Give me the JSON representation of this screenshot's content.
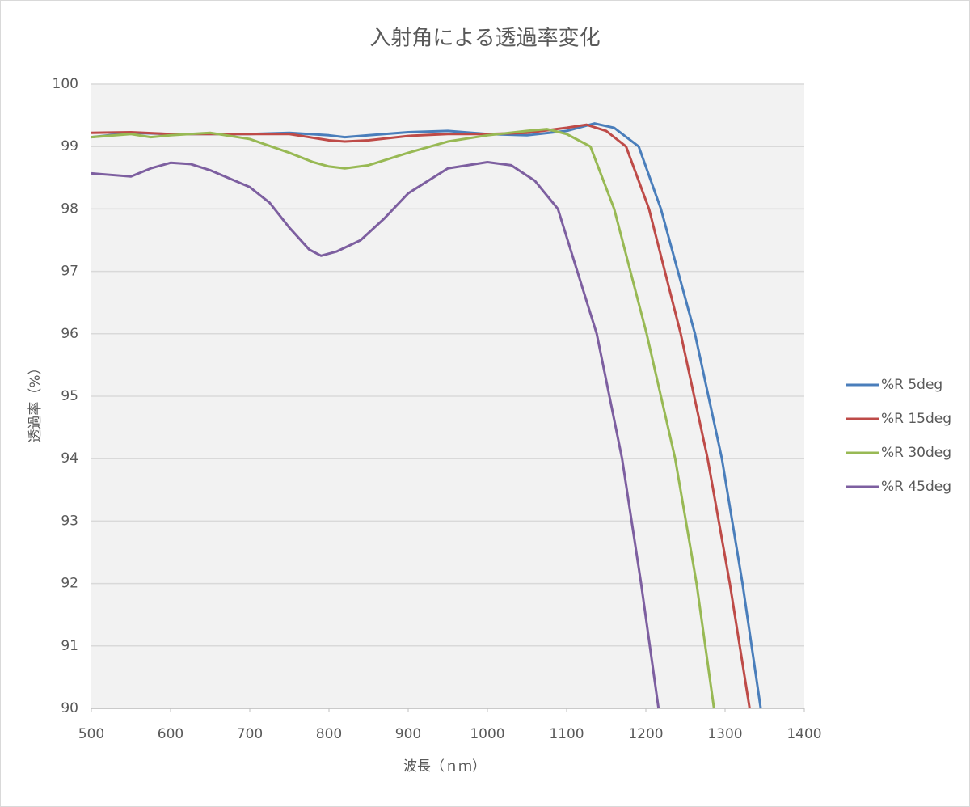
{
  "chart_data": {
    "type": "line",
    "title": "入射角による透過率変化",
    "x_label": "波長（ｎｍ）",
    "y_label": "透過率（%）",
    "xlim": [
      500,
      1400
    ],
    "xticks": [
      500,
      600,
      700,
      800,
      900,
      1000,
      1100,
      1200,
      1300,
      1400
    ],
    "ylim": [
      90,
      100
    ],
    "yticks": [
      90,
      91,
      92,
      93,
      94,
      95,
      96,
      97,
      98,
      99,
      100
    ],
    "grid": true,
    "legend": "right",
    "series": [
      {
        "name": "%R 5deg",
        "color": "#4a7ebb",
        "x": [
          500,
          550,
          600,
          650,
          700,
          750,
          800,
          820,
          850,
          900,
          950,
          1000,
          1050,
          1100,
          1135,
          1160,
          1191,
          1219,
          1262,
          1296,
          1322,
          1345
        ],
        "values": [
          99.15,
          99.22,
          99.2,
          99.2,
          99.2,
          99.22,
          99.18,
          99.15,
          99.18,
          99.23,
          99.25,
          99.2,
          99.18,
          99.25,
          99.37,
          99.3,
          99,
          98,
          96,
          94,
          92,
          90
        ]
      },
      {
        "name": "%R 15deg",
        "color": "#be4b48",
        "x": [
          500,
          550,
          600,
          650,
          700,
          750,
          800,
          820,
          850,
          900,
          950,
          1000,
          1050,
          1100,
          1125,
          1150,
          1175,
          1204,
          1244,
          1278,
          1306,
          1331
        ],
        "values": [
          99.22,
          99.23,
          99.2,
          99.2,
          99.2,
          99.2,
          99.1,
          99.08,
          99.1,
          99.17,
          99.2,
          99.2,
          99.22,
          99.3,
          99.35,
          99.25,
          99,
          98,
          96,
          94,
          92,
          90
        ]
      },
      {
        "name": "%R 30deg",
        "color": "#98b954",
        "x": [
          500,
          550,
          575,
          600,
          650,
          700,
          750,
          780,
          800,
          820,
          850,
          900,
          950,
          1000,
          1050,
          1075,
          1100,
          1130,
          1160,
          1201,
          1237,
          1264,
          1286
        ],
        "values": [
          99.15,
          99.2,
          99.15,
          99.18,
          99.22,
          99.12,
          98.9,
          98.75,
          98.68,
          98.65,
          98.7,
          98.9,
          99.08,
          99.18,
          99.25,
          99.28,
          99.2,
          99,
          98,
          96,
          94,
          92,
          90
        ]
      },
      {
        "name": "%R 45deg",
        "color": "#7d5fa0",
        "x": [
          500,
          520,
          550,
          575,
          600,
          625,
          650,
          700,
          725,
          750,
          775,
          790,
          810,
          840,
          870,
          900,
          950,
          1000,
          1030,
          1060,
          1089,
          1138,
          1170,
          1194,
          1216
        ],
        "values": [
          98.57,
          98.55,
          98.52,
          98.65,
          98.74,
          98.72,
          98.62,
          98.35,
          98.1,
          97.7,
          97.35,
          97.25,
          97.32,
          97.5,
          97.85,
          98.25,
          98.65,
          98.75,
          98.7,
          98.45,
          98,
          96,
          94,
          92,
          90
        ]
      }
    ]
  }
}
